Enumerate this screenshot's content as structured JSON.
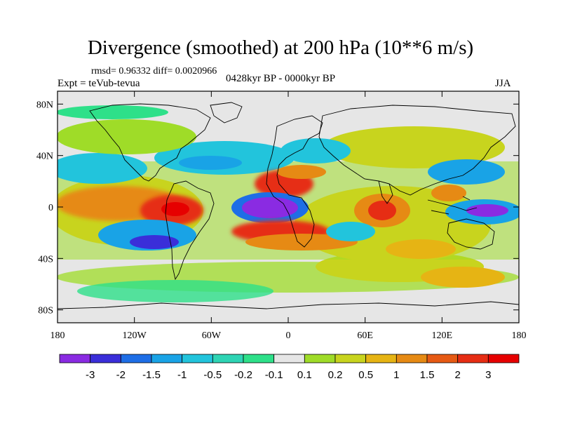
{
  "title": "Divergence (smoothed) at 200 hPa (10**6 m/s)",
  "stats": "rmsd= 0.96332 diff= 0.0020966",
  "experiment": "Expt = teVub-tevua",
  "period": "0428kyr BP - 0000kyr BP",
  "season": "JJA",
  "map": {
    "projection": "cylindrical equidistant",
    "lon_range": [
      -180,
      180
    ],
    "lat_range": [
      -90,
      90
    ],
    "x_ticks": [
      "180",
      "120W",
      "60W",
      "0",
      "60E",
      "120E",
      "180"
    ],
    "y_ticks": [
      "80N",
      "40N",
      "0",
      "40S",
      "80S"
    ],
    "background_color": "#e6e6e6",
    "coastline_color": "#000000"
  },
  "colorbar": {
    "labels": [
      "-3",
      "-2",
      "-1.5",
      "-1",
      "-0.5",
      "-0.2",
      "-0.1",
      "0.1",
      "0.2",
      "0.5",
      "1",
      "1.5",
      "2",
      "3"
    ],
    "colors": [
      "#8a2be2",
      "#3a2ed9",
      "#1e6ee6",
      "#19a3e6",
      "#22c4dc",
      "#2ed4b4",
      "#2ee089",
      "#e6e6e6",
      "#9fdc28",
      "#c8d41e",
      "#e6b414",
      "#e68a14",
      "#e65a14",
      "#e62d14",
      "#e60000"
    ]
  },
  "fields": [
    {
      "id": "atl-neg-core",
      "lon": -10,
      "lat": 0,
      "value": -3.5
    },
    {
      "id": "atl-neg-ring",
      "lon": -15,
      "lat": -2,
      "value": -1.5
    },
    {
      "id": "atl-pos-north",
      "lon": -10,
      "lat": 18,
      "value": 2.5
    },
    {
      "id": "atl-pos-south",
      "lon": -5,
      "lat": -17,
      "value": 2.5
    },
    {
      "id": "epac-pos",
      "lon": -120,
      "lat": 0,
      "value": 1.5
    },
    {
      "id": "sa-pos",
      "lon": -85,
      "lat": 3,
      "value": 3
    },
    {
      "id": "spac-neg",
      "lon": -120,
      "lat": -25,
      "value": -2
    },
    {
      "id": "npac-neg",
      "lon": -150,
      "lat": 20,
      "value": -1
    },
    {
      "id": "io-pos",
      "lon": 70,
      "lat": 0,
      "value": 3
    },
    {
      "id": "wpac-neg",
      "lon": 150,
      "lat": -2,
      "value": -2.5
    },
    {
      "id": "wpac-pos",
      "lon": 130,
      "lat": 15,
      "value": 1
    },
    {
      "id": "sio-pos",
      "lon": 95,
      "lat": -30,
      "value": 1
    },
    {
      "id": "asia-pos",
      "lon": 45,
      "lat": 30,
      "value": 0.5
    },
    {
      "id": "so-pos",
      "lon": 120,
      "lat": -55,
      "value": 0.5
    }
  ]
}
